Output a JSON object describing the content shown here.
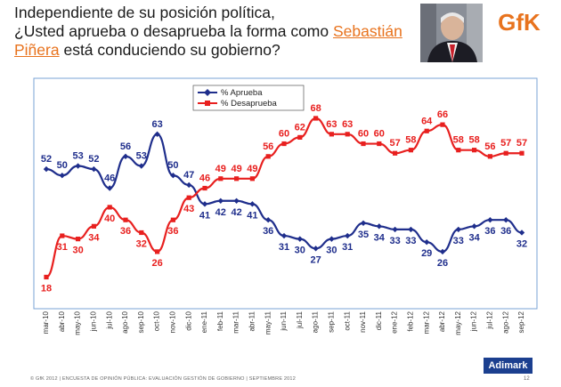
{
  "header": {
    "line1": "Independiente de su posición política,",
    "line2_pre": "¿Usted aprueba o desaprueba la forma como ",
    "highlight1": "Sebastián",
    "highlight2": "Piñera",
    "line3_post": " está conduciendo su gobierno?"
  },
  "logo_text": "GfK",
  "brand_label": "Adimark",
  "footer": "© GfK 2012 | ENCUESTA DE OPINIÓN PÚBLICA: EVALUACIÓN GESTIÓN DE GOBIERNO | SEPTIEMBRE 2012",
  "page_number": "12",
  "colors": {
    "approve": "#1f2e8c",
    "disapprove": "#e8201f",
    "accent": "#e8731e",
    "brand": "#1b3f8f"
  },
  "chart_data": {
    "type": "line",
    "title": "",
    "xlabel": "",
    "ylabel": "",
    "ylim": [
      10,
      75
    ],
    "grid": false,
    "legend_position": "top-left",
    "x": [
      "mar-10",
      "abr-10",
      "may-10",
      "jun-10",
      "jul-10",
      "ago-10",
      "sep-10",
      "oct-10",
      "nov-10",
      "dic-10",
      "ene-11",
      "feb-11",
      "mar-11",
      "abr-11",
      "may-11",
      "jun-11",
      "jul-11",
      "ago-11",
      "sep-11",
      "oct-11",
      "nov-11",
      "dic-11",
      "ene-12",
      "feb-12",
      "mar-12",
      "abr-12",
      "may-12",
      "jun-12",
      "jul-12",
      "ago-12",
      "sep-12"
    ],
    "series": [
      {
        "name": "% Aprueba",
        "color": "#1f2e8c",
        "values": [
          52,
          50,
          53,
          52,
          46,
          56,
          53,
          63,
          50,
          47,
          41,
          42,
          42,
          41,
          36,
          31,
          30,
          27,
          30,
          31,
          35,
          34,
          33,
          33,
          29,
          26,
          33,
          34,
          36,
          36,
          32
        ]
      },
      {
        "name": "% Desaprueba",
        "color": "#e8201f",
        "values": [
          18,
          31,
          30,
          34,
          40,
          36,
          32,
          26,
          36,
          43,
          46,
          49,
          49,
          49,
          56,
          60,
          62,
          68,
          63,
          63,
          60,
          60,
          57,
          58,
          64,
          66,
          58,
          58,
          56,
          57,
          57
        ]
      }
    ]
  }
}
